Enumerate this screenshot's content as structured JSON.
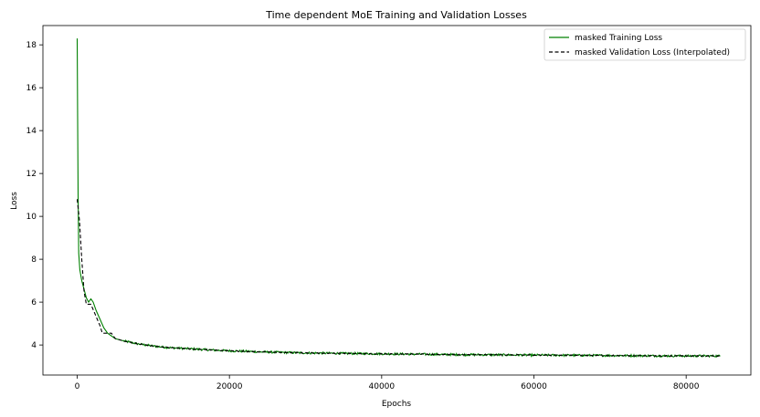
{
  "chart_data": {
    "type": "line",
    "title": "Time dependent MoE Training and Validation Losses",
    "xlabel": "Epochs",
    "ylabel": "Loss",
    "xlim": [
      -4500,
      88500
    ],
    "ylim": [
      2.6,
      18.9
    ],
    "xticks": [
      0,
      20000,
      40000,
      60000,
      80000
    ],
    "yticks": [
      4,
      6,
      8,
      10,
      12,
      14,
      16,
      18
    ],
    "grid": false,
    "legend_position": "top-right",
    "series": [
      {
        "name": "masked Training Loss",
        "color": "#008000",
        "style": "solid",
        "points": [
          [
            0,
            18.3
          ],
          [
            60,
            14.5
          ],
          [
            120,
            11.0
          ],
          [
            200,
            8.3
          ],
          [
            350,
            7.5
          ],
          [
            600,
            7.0
          ],
          [
            900,
            6.6
          ],
          [
            1200,
            6.2
          ],
          [
            1500,
            6.0
          ],
          [
            1800,
            6.15
          ],
          [
            2100,
            6.0
          ],
          [
            2500,
            5.6
          ],
          [
            3000,
            5.2
          ],
          [
            3500,
            4.8
          ],
          [
            4000,
            4.55
          ],
          [
            5000,
            4.3
          ],
          [
            6000,
            4.2
          ],
          [
            8000,
            4.05
          ],
          [
            10000,
            3.95
          ],
          [
            12000,
            3.88
          ],
          [
            15000,
            3.82
          ],
          [
            18000,
            3.76
          ],
          [
            20000,
            3.73
          ],
          [
            25000,
            3.67
          ],
          [
            30000,
            3.63
          ],
          [
            35000,
            3.61
          ],
          [
            40000,
            3.59
          ],
          [
            45000,
            3.57
          ],
          [
            50000,
            3.55
          ],
          [
            55000,
            3.54
          ],
          [
            60000,
            3.53
          ],
          [
            65000,
            3.52
          ],
          [
            70000,
            3.51
          ],
          [
            75000,
            3.5
          ],
          [
            80000,
            3.49
          ],
          [
            84500,
            3.49
          ]
        ],
        "noise_amplitude": 0.05
      },
      {
        "name": "masked Validation Loss (Interpolated)",
        "color": "#000000",
        "style": "dashed",
        "points": [
          [
            0,
            10.8
          ],
          [
            300,
            9.8
          ],
          [
            600,
            8.0
          ],
          [
            900,
            6.5
          ],
          [
            1200,
            5.9
          ],
          [
            1800,
            5.9
          ],
          [
            2400,
            5.4
          ],
          [
            3000,
            4.9
          ],
          [
            3300,
            4.55
          ],
          [
            4500,
            4.55
          ],
          [
            5000,
            4.3
          ],
          [
            6000,
            4.2
          ],
          [
            8000,
            4.05
          ],
          [
            10000,
            3.95
          ],
          [
            12000,
            3.88
          ],
          [
            15000,
            3.82
          ],
          [
            18000,
            3.76
          ],
          [
            20000,
            3.73
          ],
          [
            25000,
            3.67
          ],
          [
            30000,
            3.63
          ],
          [
            35000,
            3.61
          ],
          [
            40000,
            3.59
          ],
          [
            45000,
            3.57
          ],
          [
            50000,
            3.55
          ],
          [
            55000,
            3.54
          ],
          [
            60000,
            3.53
          ],
          [
            65000,
            3.52
          ],
          [
            70000,
            3.51
          ],
          [
            75000,
            3.5
          ],
          [
            80000,
            3.49
          ],
          [
            84500,
            3.49
          ]
        ],
        "noise_amplitude": 0.02
      }
    ]
  }
}
